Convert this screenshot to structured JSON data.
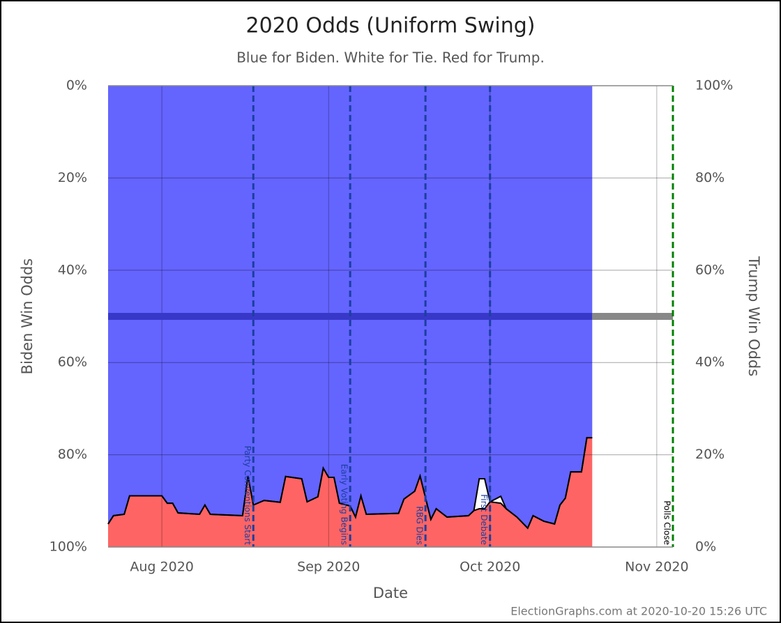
{
  "chart_data": {
    "type": "odds_area",
    "title": "2020 Odds (Uniform Swing)",
    "subtitle": "Blue for Biden. White for Tie. Red for Trump.",
    "xlabel": "Date",
    "ylabel": "Biden Win Odds",
    "y2label": "Trump Win Odds",
    "footer": "ElectionGraphs.com at 2020-10-20 15:26 UTC",
    "xlim": [
      "2020-07-22",
      "2020-11-04"
    ],
    "xticks": [
      {
        "value": "2020-08-01",
        "label": "Aug 2020"
      },
      {
        "value": "2020-09-01",
        "label": "Sep 2020"
      },
      {
        "value": "2020-10-01",
        "label": "Oct 2020"
      },
      {
        "value": "2020-11-01",
        "label": "Nov 2020"
      }
    ],
    "ylim": [
      100,
      0
    ],
    "yticks": [
      {
        "value": 0,
        "label": "0%"
      },
      {
        "value": 20,
        "label": "20%"
      },
      {
        "value": 40,
        "label": "40%"
      },
      {
        "value": 60,
        "label": "60%"
      },
      {
        "value": 80,
        "label": "80%"
      },
      {
        "value": 100,
        "label": "100%"
      }
    ],
    "y2lim": [
      0,
      100
    ],
    "y2ticks": [
      {
        "value": 100,
        "label": "100%"
      },
      {
        "value": 80,
        "label": "80%"
      },
      {
        "value": 60,
        "label": "60%"
      },
      {
        "value": 40,
        "label": "40%"
      },
      {
        "value": 20,
        "label": "20%"
      },
      {
        "value": 0,
        "label": "0%"
      }
    ],
    "grid": true,
    "reference_line": 50,
    "x": [
      "2020-07-22",
      "2020-07-23",
      "2020-07-25",
      "2020-07-26",
      "2020-08-01",
      "2020-08-02",
      "2020-08-03",
      "2020-08-04",
      "2020-08-08",
      "2020-08-09",
      "2020-08-10",
      "2020-08-16",
      "2020-08-17",
      "2020-08-18",
      "2020-08-20",
      "2020-08-23",
      "2020-08-24",
      "2020-08-27",
      "2020-08-28",
      "2020-08-30",
      "2020-08-31",
      "2020-09-01",
      "2020-09-02",
      "2020-09-03",
      "2020-09-05",
      "2020-09-06",
      "2020-09-07",
      "2020-09-08",
      "2020-09-14",
      "2020-09-15",
      "2020-09-17",
      "2020-09-18",
      "2020-09-20",
      "2020-09-21",
      "2020-09-23",
      "2020-09-27",
      "2020-09-28",
      "2020-09-29",
      "2020-09-30",
      "2020-10-01",
      "2020-10-03",
      "2020-10-04",
      "2020-10-06",
      "2020-10-08",
      "2020-10-09",
      "2020-10-11",
      "2020-10-13",
      "2020-10-14",
      "2020-10-15",
      "2020-10-16",
      "2020-10-18",
      "2020-10-19",
      "2020-10-20"
    ],
    "series": [
      {
        "color": "#6464ff",
        "values": [
          95.0,
          93.2,
          92.9,
          88.9,
          88.9,
          90.5,
          90.5,
          92.6,
          92.9,
          90.9,
          92.9,
          93.2,
          84.6,
          90.9,
          89.9,
          90.3,
          84.7,
          85.2,
          90.2,
          89.1,
          82.9,
          84.9,
          84.9,
          90.5,
          91.1,
          93.5,
          88.9,
          92.9,
          92.7,
          89.6,
          87.9,
          84.6,
          94.0,
          91.7,
          93.5,
          93.2,
          92.1,
          85.2,
          85.2,
          90.2,
          89.0,
          91.7,
          93.5,
          95.9,
          93.2,
          94.4,
          95.0,
          90.9,
          89.4,
          83.7,
          83.7,
          76.3,
          76.3
        ]
      },
      {
        "color": "#ff6464",
        "axis": "y2",
        "values": [
          5.0,
          6.8,
          7.1,
          11.1,
          11.1,
          9.5,
          9.5,
          7.4,
          7.1,
          9.1,
          7.1,
          6.8,
          15.4,
          9.1,
          10.1,
          9.7,
          15.3,
          14.8,
          9.8,
          10.9,
          17.1,
          15.1,
          15.1,
          9.5,
          8.9,
          6.5,
          11.1,
          7.1,
          7.3,
          10.4,
          12.1,
          15.4,
          6.0,
          8.3,
          6.5,
          6.8,
          7.9,
          8.3,
          8.3,
          9.8,
          9.5,
          8.3,
          6.5,
          4.1,
          6.8,
          5.6,
          5.0,
          9.1,
          10.6,
          16.3,
          16.3,
          23.7,
          23.7
        ]
      }
    ],
    "events": [
      {
        "x": "2020-08-18",
        "label": "Party Conventions Start",
        "color": "#1a3fa0"
      },
      {
        "x": "2020-09-05",
        "label": "Early Voting Begins",
        "color": "#1a3fa0"
      },
      {
        "x": "2020-09-19",
        "label": "RBG Dies",
        "color": "#1a3fa0"
      },
      {
        "x": "2020-10-01",
        "label": "First Debate",
        "color": "#1a3fa0"
      },
      {
        "x": "2020-11-04",
        "label": "Polls Close",
        "color": "#008000"
      }
    ]
  }
}
